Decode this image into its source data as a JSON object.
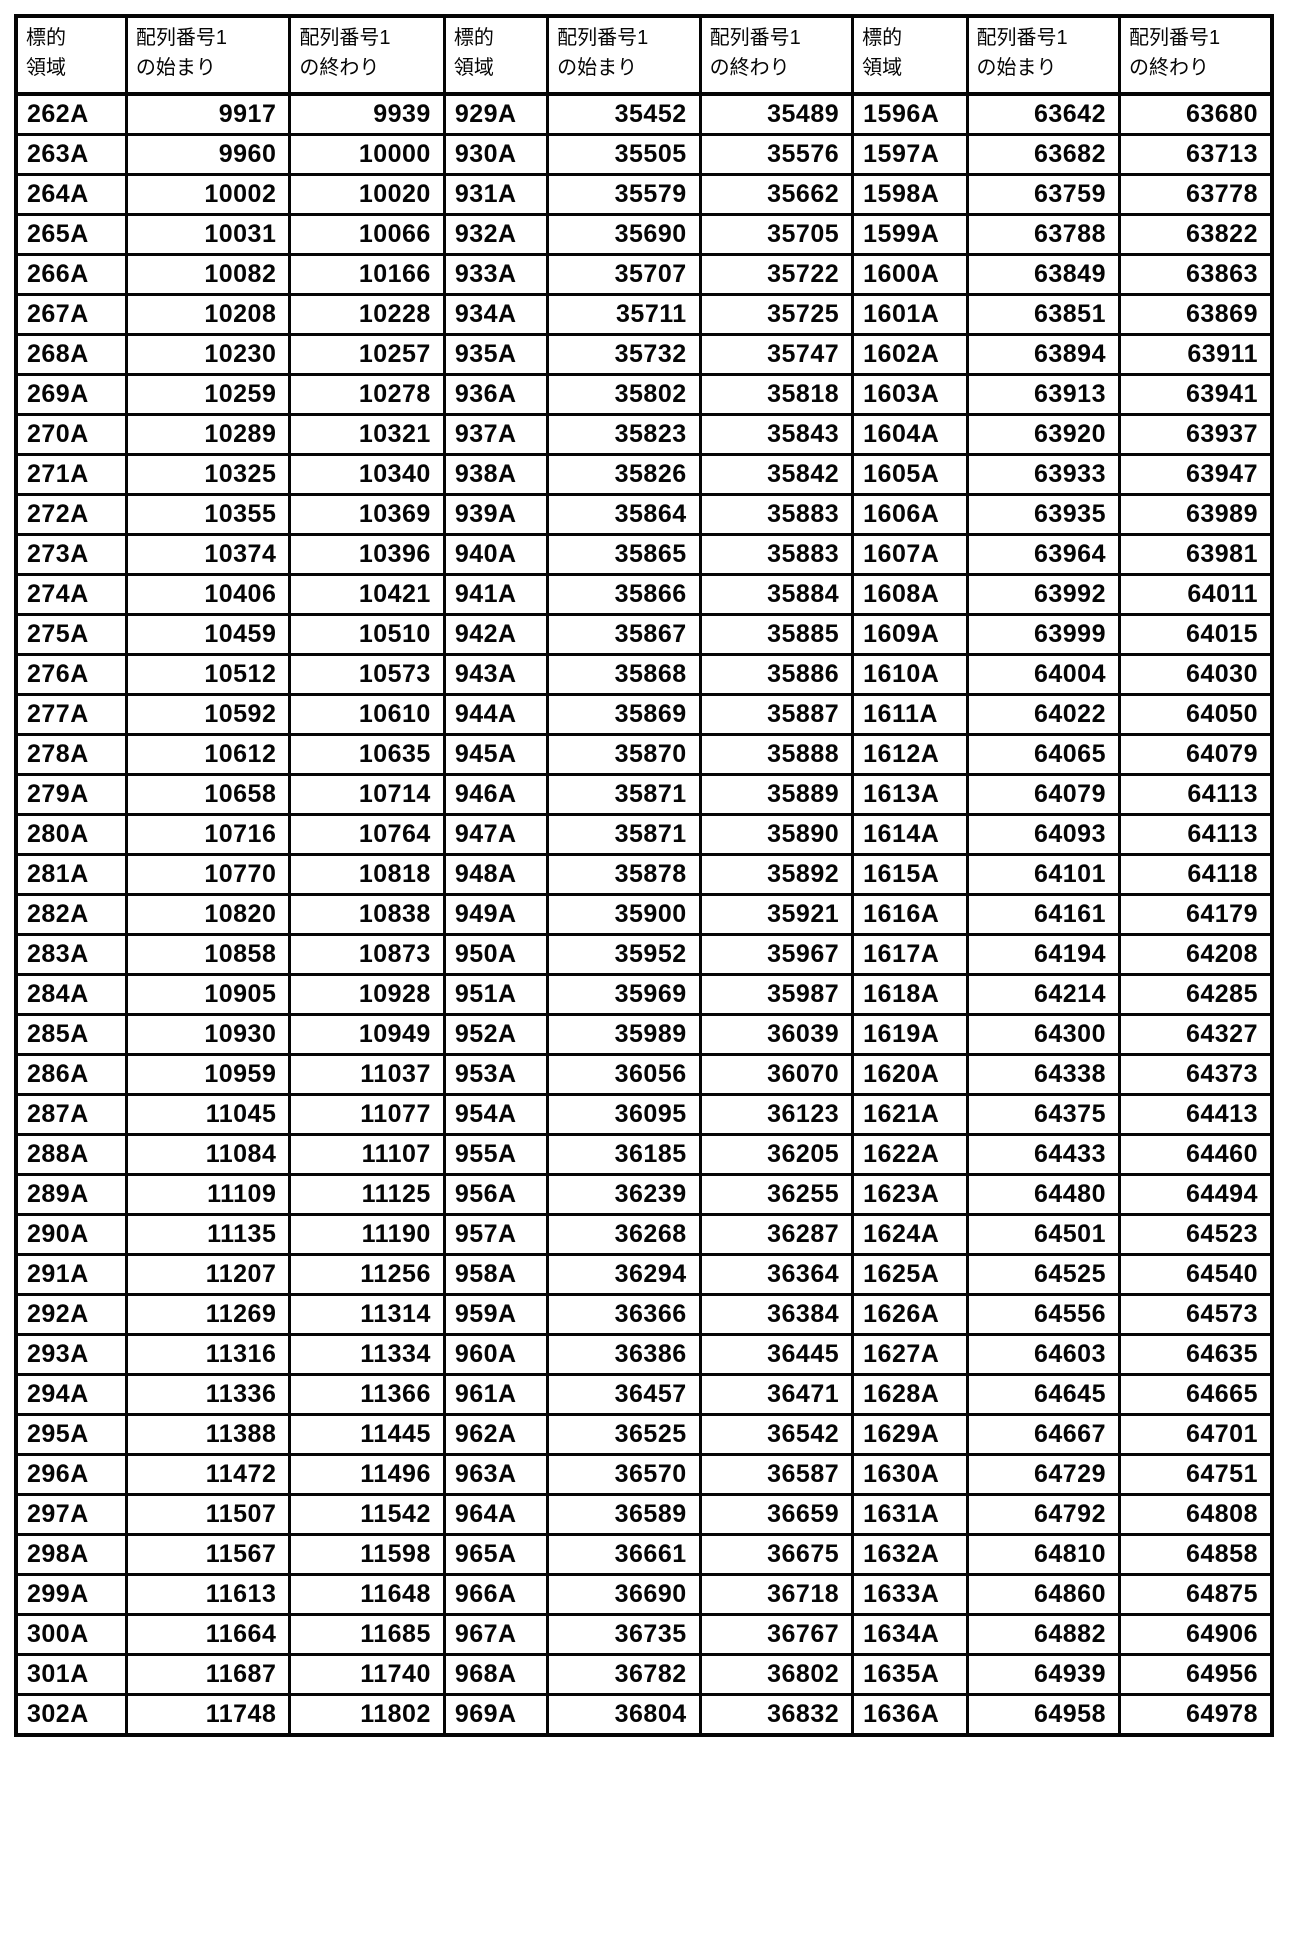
{
  "table": {
    "headers": [
      "標的\n領域",
      "配列番号1\nの始まり",
      "配列番号1\nの終わり",
      "標的\n領域",
      "配列番号1\nの始まり",
      "配列番号1\nの終わり",
      "標的\n領域",
      "配列番号1\nの始まり",
      "配列番号1\nの終わり"
    ],
    "rows": [
      [
        "262A",
        "9917",
        "9939",
        "929A",
        "35452",
        "35489",
        "1596A",
        "63642",
        "63680"
      ],
      [
        "263A",
        "9960",
        "10000",
        "930A",
        "35505",
        "35576",
        "1597A",
        "63682",
        "63713"
      ],
      [
        "264A",
        "10002",
        "10020",
        "931A",
        "35579",
        "35662",
        "1598A",
        "63759",
        "63778"
      ],
      [
        "265A",
        "10031",
        "10066",
        "932A",
        "35690",
        "35705",
        "1599A",
        "63788",
        "63822"
      ],
      [
        "266A",
        "10082",
        "10166",
        "933A",
        "35707",
        "35722",
        "1600A",
        "63849",
        "63863"
      ],
      [
        "267A",
        "10208",
        "10228",
        "934A",
        "35711",
        "35725",
        "1601A",
        "63851",
        "63869"
      ],
      [
        "268A",
        "10230",
        "10257",
        "935A",
        "35732",
        "35747",
        "1602A",
        "63894",
        "63911"
      ],
      [
        "269A",
        "10259",
        "10278",
        "936A",
        "35802",
        "35818",
        "1603A",
        "63913",
        "63941"
      ],
      [
        "270A",
        "10289",
        "10321",
        "937A",
        "35823",
        "35843",
        "1604A",
        "63920",
        "63937"
      ],
      [
        "271A",
        "10325",
        "10340",
        "938A",
        "35826",
        "35842",
        "1605A",
        "63933",
        "63947"
      ],
      [
        "272A",
        "10355",
        "10369",
        "939A",
        "35864",
        "35883",
        "1606A",
        "63935",
        "63989"
      ],
      [
        "273A",
        "10374",
        "10396",
        "940A",
        "35865",
        "35883",
        "1607A",
        "63964",
        "63981"
      ],
      [
        "274A",
        "10406",
        "10421",
        "941A",
        "35866",
        "35884",
        "1608A",
        "63992",
        "64011"
      ],
      [
        "275A",
        "10459",
        "10510",
        "942A",
        "35867",
        "35885",
        "1609A",
        "63999",
        "64015"
      ],
      [
        "276A",
        "10512",
        "10573",
        "943A",
        "35868",
        "35886",
        "1610A",
        "64004",
        "64030"
      ],
      [
        "277A",
        "10592",
        "10610",
        "944A",
        "35869",
        "35887",
        "1611A",
        "64022",
        "64050"
      ],
      [
        "278A",
        "10612",
        "10635",
        "945A",
        "35870",
        "35888",
        "1612A",
        "64065",
        "64079"
      ],
      [
        "279A",
        "10658",
        "10714",
        "946A",
        "35871",
        "35889",
        "1613A",
        "64079",
        "64113"
      ],
      [
        "280A",
        "10716",
        "10764",
        "947A",
        "35871",
        "35890",
        "1614A",
        "64093",
        "64113"
      ],
      [
        "281A",
        "10770",
        "10818",
        "948A",
        "35878",
        "35892",
        "1615A",
        "64101",
        "64118"
      ],
      [
        "282A",
        "10820",
        "10838",
        "949A",
        "35900",
        "35921",
        "1616A",
        "64161",
        "64179"
      ],
      [
        "283A",
        "10858",
        "10873",
        "950A",
        "35952",
        "35967",
        "1617A",
        "64194",
        "64208"
      ],
      [
        "284A",
        "10905",
        "10928",
        "951A",
        "35969",
        "35987",
        "1618A",
        "64214",
        "64285"
      ],
      [
        "285A",
        "10930",
        "10949",
        "952A",
        "35989",
        "36039",
        "1619A",
        "64300",
        "64327"
      ],
      [
        "286A",
        "10959",
        "11037",
        "953A",
        "36056",
        "36070",
        "1620A",
        "64338",
        "64373"
      ],
      [
        "287A",
        "11045",
        "11077",
        "954A",
        "36095",
        "36123",
        "1621A",
        "64375",
        "64413"
      ],
      [
        "288A",
        "11084",
        "11107",
        "955A",
        "36185",
        "36205",
        "1622A",
        "64433",
        "64460"
      ],
      [
        "289A",
        "11109",
        "11125",
        "956A",
        "36239",
        "36255",
        "1623A",
        "64480",
        "64494"
      ],
      [
        "290A",
        "11135",
        "11190",
        "957A",
        "36268",
        "36287",
        "1624A",
        "64501",
        "64523"
      ],
      [
        "291A",
        "11207",
        "11256",
        "958A",
        "36294",
        "36364",
        "1625A",
        "64525",
        "64540"
      ],
      [
        "292A",
        "11269",
        "11314",
        "959A",
        "36366",
        "36384",
        "1626A",
        "64556",
        "64573"
      ],
      [
        "293A",
        "11316",
        "11334",
        "960A",
        "36386",
        "36445",
        "1627A",
        "64603",
        "64635"
      ],
      [
        "294A",
        "11336",
        "11366",
        "961A",
        "36457",
        "36471",
        "1628A",
        "64645",
        "64665"
      ],
      [
        "295A",
        "11388",
        "11445",
        "962A",
        "36525",
        "36542",
        "1629A",
        "64667",
        "64701"
      ],
      [
        "296A",
        "11472",
        "11496",
        "963A",
        "36570",
        "36587",
        "1630A",
        "64729",
        "64751"
      ],
      [
        "297A",
        "11507",
        "11542",
        "964A",
        "36589",
        "36659",
        "1631A",
        "64792",
        "64808"
      ],
      [
        "298A",
        "11567",
        "11598",
        "965A",
        "36661",
        "36675",
        "1632A",
        "64810",
        "64858"
      ],
      [
        "299A",
        "11613",
        "11648",
        "966A",
        "36690",
        "36718",
        "1633A",
        "64860",
        "64875"
      ],
      [
        "300A",
        "11664",
        "11685",
        "967A",
        "36735",
        "36767",
        "1634A",
        "64882",
        "64906"
      ],
      [
        "301A",
        "11687",
        "11740",
        "968A",
        "36782",
        "36802",
        "1635A",
        "64939",
        "64956"
      ],
      [
        "302A",
        "11748",
        "11802",
        "969A",
        "36804",
        "36832",
        "1636A",
        "64958",
        "64978"
      ]
    ]
  }
}
